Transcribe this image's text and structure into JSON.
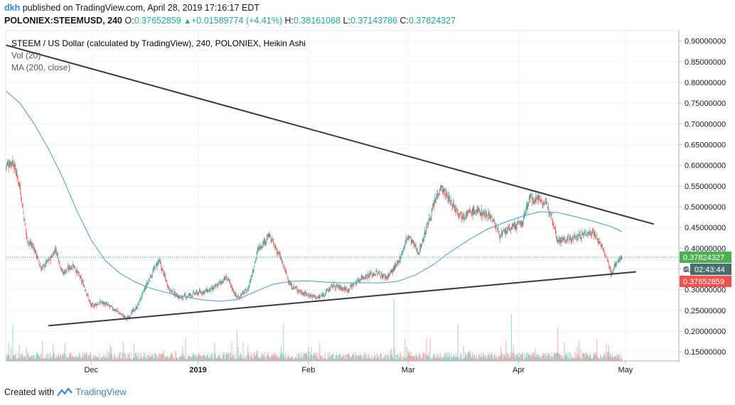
{
  "header": {
    "user": "dkh",
    "published_text": "published on TradingView.com, April 28, 2019 17:16:17 EDT",
    "symbol": "POLONIEX:STEEMUSD, 240",
    "open_label": "O:",
    "open": "0.37652859",
    "change": "+0.01589774 (+4.41%)",
    "high_label": "H:",
    "high": "0.38161068",
    "low_label": "L:",
    "low": "0.37143786",
    "close_label": "C:",
    "close": "0.37824327"
  },
  "legend": {
    "title": "STEEM / US Dollar (calculated by TradingView), 240, POLONIEX, Heikin Ashi",
    "vol": "Vol (20)",
    "ma": "MA (200, close)"
  },
  "price_axis": {
    "ticks": [
      "0.90000000",
      "0.85000000",
      "0.80000000",
      "0.75000000",
      "0.70000000",
      "0.65000000",
      "0.60000000",
      "0.55000000",
      "0.50000000",
      "0.45000000",
      "0.40000000",
      "0.35000000",
      "0.30000000",
      "0.25000000",
      "0.20000000",
      "0.15000000"
    ],
    "tick_values": [
      0.9,
      0.85,
      0.8,
      0.75,
      0.7,
      0.65,
      0.6,
      0.55,
      0.5,
      0.45,
      0.4,
      0.35,
      0.3,
      0.25,
      0.2,
      0.15
    ],
    "label_last": "0.37824327",
    "label_countdown_prefix": "0.",
    "label_countdown": "02:43:44",
    "label_open": "0.37652859",
    "value_last": 0.37824327,
    "value_open": 0.37652859
  },
  "time_axis": {
    "labels": [
      "Dec",
      "2019",
      "Feb",
      "Mar",
      "Apr",
      "May"
    ],
    "day_index": [
      24,
      54,
      85,
      113,
      144,
      174
    ]
  },
  "footer": {
    "created_with": "Created with",
    "brand": "TradingView"
  },
  "colors": {
    "up": "#26a69a",
    "down": "#ef5350",
    "ma": "#4a9ccf",
    "trend": "#363a45",
    "grid": "#f0f3fa",
    "axis_text": "#131722",
    "last_price": "#4caf50",
    "countdown_bg": "#4a6f6a",
    "open_price": "#ef5350"
  },
  "chart_data": {
    "type": "candlestick",
    "title": "STEEM / US Dollar (calculated by TradingView), 240, POLONIEX, Heikin Ashi",
    "xlabel": "",
    "ylabel": "",
    "ylim": [
      0.128,
      0.925
    ],
    "x_range_days": [
      0,
      189
    ],
    "series_close_keypoints": [
      {
        "day": 0,
        "price": 0.6
      },
      {
        "day": 2,
        "price": 0.61
      },
      {
        "day": 4,
        "price": 0.55
      },
      {
        "day": 6,
        "price": 0.42
      },
      {
        "day": 8,
        "price": 0.4
      },
      {
        "day": 10,
        "price": 0.35
      },
      {
        "day": 13,
        "price": 0.38
      },
      {
        "day": 14,
        "price": 0.4
      },
      {
        "day": 16,
        "price": 0.34
      },
      {
        "day": 19,
        "price": 0.36
      },
      {
        "day": 22,
        "price": 0.31
      },
      {
        "day": 24,
        "price": 0.26
      },
      {
        "day": 27,
        "price": 0.27
      },
      {
        "day": 31,
        "price": 0.25
      },
      {
        "day": 34,
        "price": 0.23
      },
      {
        "day": 37,
        "price": 0.26
      },
      {
        "day": 40,
        "price": 0.32
      },
      {
        "day": 43,
        "price": 0.37
      },
      {
        "day": 46,
        "price": 0.3
      },
      {
        "day": 49,
        "price": 0.28
      },
      {
        "day": 53,
        "price": 0.29
      },
      {
        "day": 58,
        "price": 0.3
      },
      {
        "day": 62,
        "price": 0.33
      },
      {
        "day": 65,
        "price": 0.28
      },
      {
        "day": 68,
        "price": 0.3
      },
      {
        "day": 71,
        "price": 0.4
      },
      {
        "day": 74,
        "price": 0.43
      },
      {
        "day": 77,
        "price": 0.38
      },
      {
        "day": 80,
        "price": 0.31
      },
      {
        "day": 84,
        "price": 0.29
      },
      {
        "day": 88,
        "price": 0.28
      },
      {
        "day": 92,
        "price": 0.31
      },
      {
        "day": 96,
        "price": 0.3
      },
      {
        "day": 100,
        "price": 0.33
      },
      {
        "day": 104,
        "price": 0.34
      },
      {
        "day": 107,
        "price": 0.33
      },
      {
        "day": 110,
        "price": 0.36
      },
      {
        "day": 113,
        "price": 0.43
      },
      {
        "day": 116,
        "price": 0.39
      },
      {
        "day": 119,
        "price": 0.47
      },
      {
        "day": 122,
        "price": 0.55
      },
      {
        "day": 125,
        "price": 0.51
      },
      {
        "day": 128,
        "price": 0.48
      },
      {
        "day": 132,
        "price": 0.49
      },
      {
        "day": 136,
        "price": 0.48
      },
      {
        "day": 139,
        "price": 0.43
      },
      {
        "day": 142,
        "price": 0.45
      },
      {
        "day": 145,
        "price": 0.46
      },
      {
        "day": 147,
        "price": 0.52
      },
      {
        "day": 150,
        "price": 0.52
      },
      {
        "day": 153,
        "price": 0.49
      },
      {
        "day": 155,
        "price": 0.42
      },
      {
        "day": 158,
        "price": 0.42
      },
      {
        "day": 161,
        "price": 0.43
      },
      {
        "day": 165,
        "price": 0.44
      },
      {
        "day": 167,
        "price": 0.41
      },
      {
        "day": 169,
        "price": 0.37
      },
      {
        "day": 170,
        "price": 0.335
      },
      {
        "day": 171,
        "price": 0.36
      },
      {
        "day": 173,
        "price": 0.378
      }
    ],
    "ma_200": [
      {
        "day": 0,
        "price": 0.78
      },
      {
        "day": 4,
        "price": 0.75
      },
      {
        "day": 8,
        "price": 0.7
      },
      {
        "day": 12,
        "price": 0.64
      },
      {
        "day": 16,
        "price": 0.57
      },
      {
        "day": 20,
        "price": 0.49
      },
      {
        "day": 24,
        "price": 0.42
      },
      {
        "day": 28,
        "price": 0.37
      },
      {
        "day": 32,
        "price": 0.34
      },
      {
        "day": 36,
        "price": 0.32
      },
      {
        "day": 40,
        "price": 0.305
      },
      {
        "day": 45,
        "price": 0.293
      },
      {
        "day": 50,
        "price": 0.283
      },
      {
        "day": 55,
        "price": 0.276
      },
      {
        "day": 60,
        "price": 0.272
      },
      {
        "day": 65,
        "price": 0.276
      },
      {
        "day": 70,
        "price": 0.295
      },
      {
        "day": 75,
        "price": 0.313
      },
      {
        "day": 80,
        "price": 0.32
      },
      {
        "day": 85,
        "price": 0.321
      },
      {
        "day": 90,
        "price": 0.318
      },
      {
        "day": 95,
        "price": 0.316
      },
      {
        "day": 100,
        "price": 0.317
      },
      {
        "day": 105,
        "price": 0.316
      },
      {
        "day": 110,
        "price": 0.32
      },
      {
        "day": 115,
        "price": 0.335
      },
      {
        "day": 120,
        "price": 0.36
      },
      {
        "day": 125,
        "price": 0.392
      },
      {
        "day": 130,
        "price": 0.42
      },
      {
        "day": 135,
        "price": 0.445
      },
      {
        "day": 140,
        "price": 0.462
      },
      {
        "day": 145,
        "price": 0.477
      },
      {
        "day": 150,
        "price": 0.488
      },
      {
        "day": 155,
        "price": 0.486
      },
      {
        "day": 160,
        "price": 0.476
      },
      {
        "day": 165,
        "price": 0.465
      },
      {
        "day": 170,
        "price": 0.452
      },
      {
        "day": 173,
        "price": 0.44
      }
    ],
    "trendlines": [
      {
        "name": "descending-resistance",
        "from": {
          "day": 0,
          "price": 0.89
        },
        "to": {
          "day": 182,
          "price": 0.458
        }
      },
      {
        "name": "ascending-support",
        "from": {
          "day": 12,
          "price": 0.213
        },
        "to": {
          "day": 177,
          "price": 0.343
        }
      }
    ],
    "volume_spikes": [
      {
        "day": 2,
        "value": 0.6
      },
      {
        "day": 65,
        "value": 0.5
      },
      {
        "day": 78,
        "value": 0.6
      },
      {
        "day": 109,
        "value": 1.0
      },
      {
        "day": 127,
        "value": 0.6
      },
      {
        "day": 142,
        "value": 0.75
      },
      {
        "day": 155,
        "value": 0.55
      },
      {
        "day": 166,
        "value": 0.35
      }
    ],
    "last_price": 0.37824327,
    "open_price": 0.37652859
  }
}
